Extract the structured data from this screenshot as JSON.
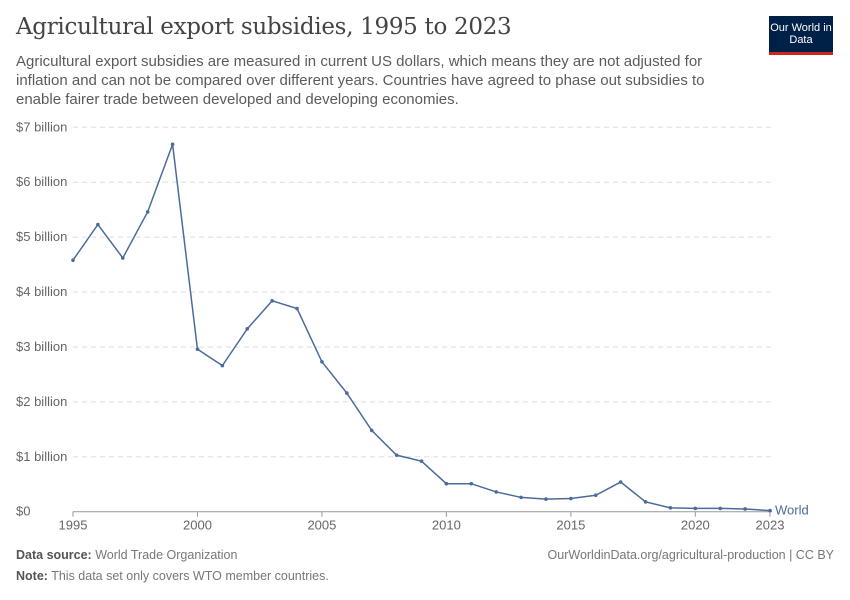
{
  "title": "Agricultural export subsidies, 1995 to 2023",
  "subtitle": "Agricultural export subsidies are measured in current US dollars, which means they are not adjusted for inflation and can not be compared over different years. Countries have agreed to phase out subsidies to enable fairer trade between developed and developing economies.",
  "logo": "Our World in Data",
  "footer": {
    "source_label": "Data source:",
    "source": "World Trade Organization",
    "credit": "OurWorldinData.org/agricultural-production | CC BY",
    "note_label": "Note:",
    "note": "This data set only covers WTO member countries."
  },
  "colors": {
    "line": "#4c6a9c",
    "grid": "#dddddd"
  },
  "chart_data": {
    "type": "line",
    "title": "Agricultural export subsidies, 1995 to 2023",
    "xlabel": "",
    "ylabel": "",
    "ylim": [
      0,
      7000000000
    ],
    "xlim": [
      1995,
      2023
    ],
    "grid": "horizontal dashed",
    "y_ticks": [
      {
        "v": 0,
        "label": "$0"
      },
      {
        "v": 1000000000.0,
        "label": "$1 billion"
      },
      {
        "v": 2000000000.0,
        "label": "$2 billion"
      },
      {
        "v": 3000000000.0,
        "label": "$3 billion"
      },
      {
        "v": 4000000000.0,
        "label": "$4 billion"
      },
      {
        "v": 5000000000.0,
        "label": "$5 billion"
      },
      {
        "v": 6000000000.0,
        "label": "$6 billion"
      },
      {
        "v": 7000000000.0,
        "label": "$7 billion"
      }
    ],
    "x_ticks": [
      {
        "v": 1995,
        "label": "1995"
      },
      {
        "v": 2000,
        "label": "2000"
      },
      {
        "v": 2005,
        "label": "2005"
      },
      {
        "v": 2010,
        "label": "2010"
      },
      {
        "v": 2015,
        "label": "2015"
      },
      {
        "v": 2020,
        "label": "2020"
      },
      {
        "v": 2023,
        "label": "2023"
      }
    ],
    "series": [
      {
        "name": "World",
        "x": [
          1995,
          1996,
          1997,
          1998,
          1999,
          2000,
          2001,
          2002,
          2003,
          2004,
          2005,
          2006,
          2007,
          2008,
          2009,
          2010,
          2011,
          2012,
          2013,
          2014,
          2015,
          2016,
          2017,
          2018,
          2019,
          2020,
          2021,
          2022,
          2023
        ],
        "values": [
          4580000000.0,
          5230000000.0,
          4620000000.0,
          5460000000.0,
          6690000000.0,
          2960000000.0,
          2660000000.0,
          3330000000.0,
          3840000000.0,
          3700000000.0,
          2730000000.0,
          2160000000.0,
          1480000000.0,
          1030000000.0,
          920000000.0,
          510000000.0,
          510000000.0,
          360000000.0,
          260000000.0,
          230000000.0,
          240000000.0,
          300000000.0,
          540000000.0,
          180000000.0,
          70000000.0,
          60000000.0,
          60000000.0,
          50000000.0,
          20000000.0
        ]
      }
    ]
  }
}
